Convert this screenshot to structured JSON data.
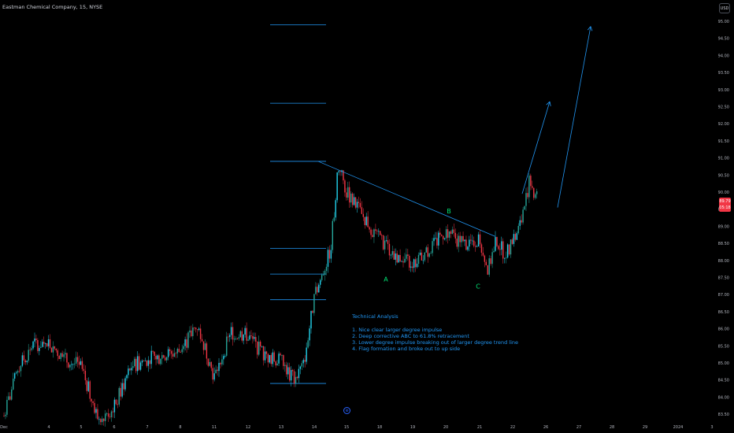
{
  "window": {
    "title": "Eastman Chemical Company, 15, NYSE"
  },
  "currency_button": {
    "label": "USD"
  },
  "last_price": {
    "value": "89.79",
    "countdown": "05:18",
    "color": "#f23645"
  },
  "colors": {
    "up": "#26a69a",
    "down": "#f23645",
    "up_bright": "#22d3ee",
    "annotation": "#2196f3",
    "wave_label": "#00e676",
    "background": "#000000",
    "price_axis_text": "#b2b5be"
  },
  "logo": {
    "icon": "tradingview-logo-icon",
    "glyph": "⊛"
  },
  "analysis": {
    "heading": "Technical Analysis",
    "points": [
      "1. Nice clear larger degree impulse",
      "2. Deep corrective ABC to 61.8% retracement",
      "3. Lower degree impulse breaking out of larger degree trend line",
      "4. Flag formation and broke out to up side"
    ]
  },
  "chart_data": {
    "type": "candlestick",
    "y_axis": {
      "position": "right",
      "ylim": [
        83.3,
        95.3
      ],
      "tick_labels": [
        "95.00",
        "94.50",
        "94.00",
        "93.50",
        "93.00",
        "92.50",
        "92.00",
        "91.50",
        "91.00",
        "90.50",
        "90.00",
        "89.50",
        "89.00",
        "88.50",
        "88.00",
        "87.50",
        "87.00",
        "86.50",
        "86.00",
        "85.50",
        "85.00",
        "84.50",
        "84.00",
        "83.50"
      ]
    },
    "x_axis": {
      "tick_labels": [
        "Dec",
        "4",
        "5",
        "6",
        "7",
        "8",
        "11",
        "12",
        "13",
        "14",
        "15",
        "18",
        "19",
        "20",
        "21",
        "22",
        "26",
        "27",
        "28",
        "29",
        "2024",
        "3"
      ]
    },
    "fib_levels": [
      94.9,
      92.6,
      90.9,
      88.35,
      87.6,
      86.85,
      84.4
    ],
    "trend_line": {
      "from": [
        "14",
        90.9
      ],
      "to": [
        "21",
        88.7
      ]
    },
    "wave_labels": [
      {
        "label": "A",
        "x": "18",
        "price": 87.45
      },
      {
        "label": "B",
        "x": "20",
        "price": 89.45
      },
      {
        "label": "C",
        "x": "21",
        "price": 87.25
      }
    ],
    "projection_arrows": [
      {
        "from": [
          "22",
          89.95
        ],
        "to": [
          "26",
          92.65
        ]
      },
      {
        "from": [
          "26",
          89.55
        ],
        "to": [
          "27",
          94.85
        ]
      }
    ],
    "price_path": [
      {
        "x": "Dec",
        "price": 83.45
      },
      {
        "x": "Dec",
        "price": 84.9
      },
      {
        "x": "Dec",
        "price": 85.55
      },
      {
        "x": "4",
        "price": 85.6
      },
      {
        "x": "4",
        "price": 85.1
      },
      {
        "x": "5",
        "price": 84.9
      },
      {
        "x": "5",
        "price": 83.4
      },
      {
        "x": "6",
        "price": 83.7
      },
      {
        "x": "6",
        "price": 84.9
      },
      {
        "x": "7",
        "price": 85.1
      },
      {
        "x": "8",
        "price": 85.35
      },
      {
        "x": "8",
        "price": 86.1
      },
      {
        "x": "11",
        "price": 84.6
      },
      {
        "x": "11",
        "price": 85.9
      },
      {
        "x": "12",
        "price": 85.8
      },
      {
        "x": "12",
        "price": 85.2
      },
      {
        "x": "13",
        "price": 85.05
      },
      {
        "x": "13",
        "price": 84.55
      },
      {
        "x": "13",
        "price": 84.9
      },
      {
        "x": "14",
        "price": 86.9
      },
      {
        "x": "14",
        "price": 87.6
      },
      {
        "x": "14",
        "price": 88.3
      },
      {
        "x": "14",
        "price": 90.75
      },
      {
        "x": "15",
        "price": 90.0
      },
      {
        "x": "15",
        "price": 89.3
      },
      {
        "x": "18",
        "price": 88.6
      },
      {
        "x": "18",
        "price": 88.15
      },
      {
        "x": "19",
        "price": 87.9
      },
      {
        "x": "19",
        "price": 88.3
      },
      {
        "x": "20",
        "price": 88.85
      },
      {
        "x": "20",
        "price": 88.5
      },
      {
        "x": "21",
        "price": 88.6
      },
      {
        "x": "21",
        "price": 87.7
      },
      {
        "x": "21",
        "price": 88.6
      },
      {
        "x": "21",
        "price": 88.2
      },
      {
        "x": "22",
        "price": 88.5
      },
      {
        "x": "22",
        "price": 89.1
      },
      {
        "x": "22",
        "price": 90.3
      },
      {
        "x": "22",
        "price": 89.8
      }
    ]
  }
}
